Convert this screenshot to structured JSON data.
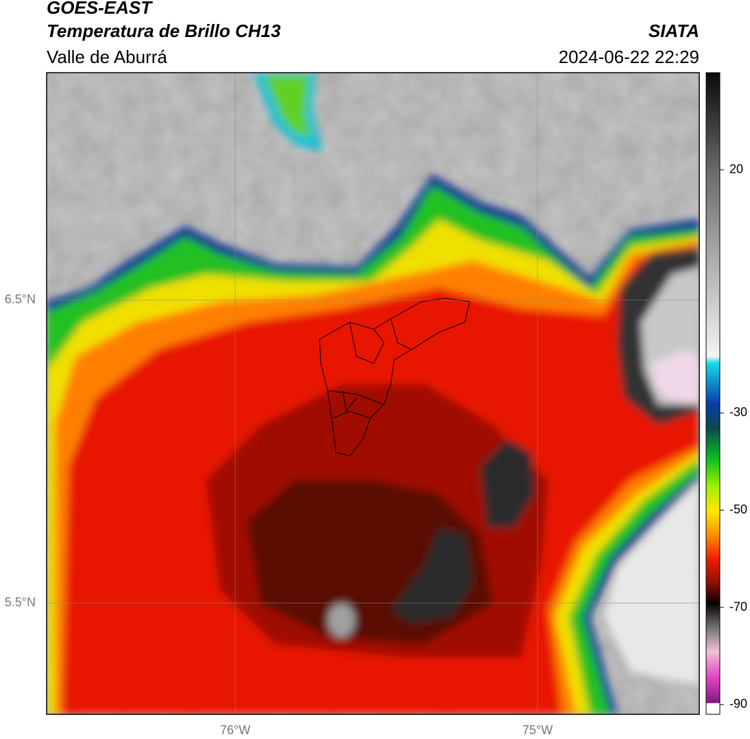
{
  "header": {
    "title": "GOES-EAST",
    "subtitle": "Temperatura de Brillo CH13",
    "region": "Valle de Aburrá",
    "source": "SIATA",
    "datetime": "2024-06-22 22:29"
  },
  "map": {
    "xlim": [
      -76.624,
      -74.465
    ],
    "ylim": [
      5.133,
      7.251
    ],
    "xticks": [
      {
        "value": -76,
        "label": "76°W"
      },
      {
        "value": -75,
        "label": "75°W"
      }
    ],
    "yticks": [
      {
        "value": 5.5,
        "label": "5.5°N"
      },
      {
        "value": 6.5,
        "label": "6.5°N"
      }
    ],
    "grid": true
  },
  "colorbar": {
    "lim": [
      -92,
      40
    ],
    "ticks": [
      -90,
      -70,
      -50,
      -30,
      20
    ]
  }
}
